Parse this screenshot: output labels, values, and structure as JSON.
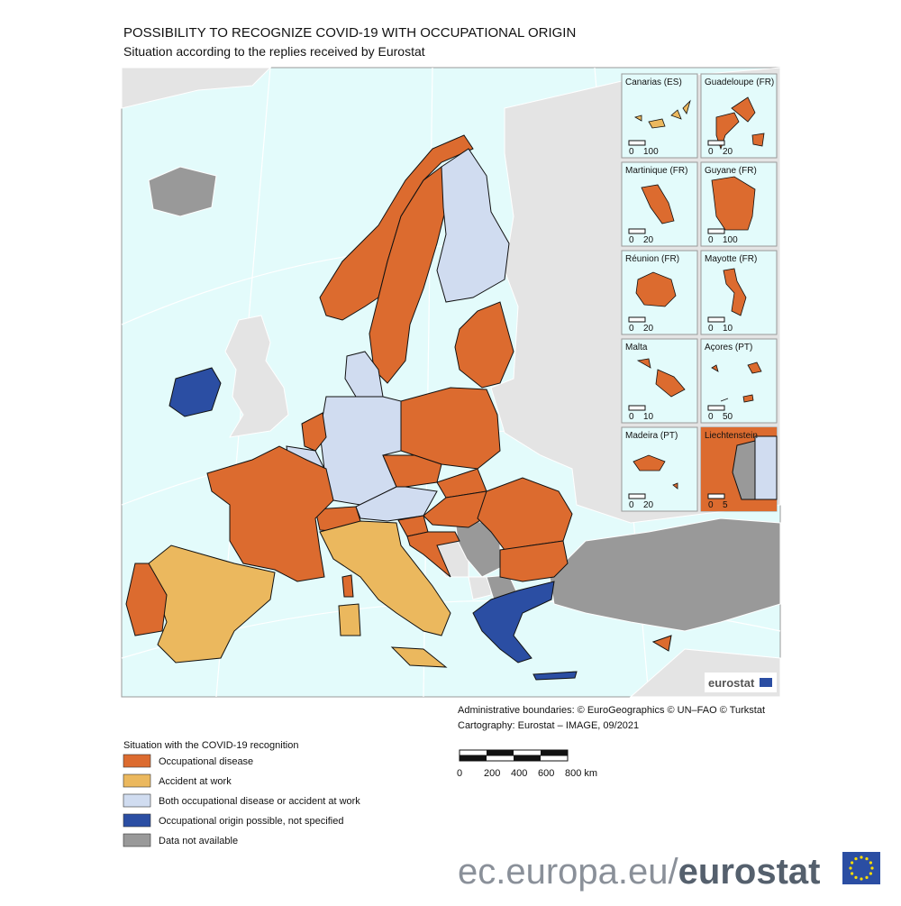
{
  "title": "POSSIBILITY TO RECOGNIZE COVID-19 WITH OCCUPATIONAL ORIGIN",
  "subtitle": "Situation according to the replies received by Eurostat",
  "insets": [
    {
      "label": "Canarias (ES)",
      "scale": [
        "0",
        "100"
      ]
    },
    {
      "label": "Guadeloupe (FR)",
      "scale": [
        "0",
        "20"
      ]
    },
    {
      "label": "Martinique (FR)",
      "scale": [
        "0",
        "20"
      ]
    },
    {
      "label": "Guyane (FR)",
      "scale": [
        "0",
        "100"
      ]
    },
    {
      "label": "Réunion (FR)",
      "scale": [
        "0",
        "20"
      ]
    },
    {
      "label": "Mayotte (FR)",
      "scale": [
        "0",
        "10"
      ]
    },
    {
      "label": "Malta",
      "scale": [
        "0",
        "10"
      ]
    },
    {
      "label": "Açores (PT)",
      "scale": [
        "0",
        "50"
      ]
    },
    {
      "label": "Madeira (PT)",
      "scale": [
        "0",
        "20"
      ]
    },
    {
      "label": "Liechtenstein",
      "scale": [
        "0",
        "5"
      ]
    }
  ],
  "logo": "eurostat",
  "credits": [
    "Administrative boundaries: © EuroGeographics © UN–FAO © Turkstat",
    "Cartography: Eurostat – IMAGE, 09/2021"
  ],
  "scale_bar": [
    "0",
    "200",
    "400",
    "600",
    "800 km"
  ],
  "legend": {
    "title": "Situation with the COVID-19 recognition",
    "items": [
      {
        "label": "Occupational disease",
        "color": "#dc6b2f"
      },
      {
        "label": "Accident at work",
        "color": "#ebb85e"
      },
      {
        "label": "Both occupational disease or accident at work",
        "color": "#d0dcf0"
      },
      {
        "label": "Occupational origin possible, not specified",
        "color": "#2b4ea3"
      },
      {
        "label": "Data not available",
        "color": "#999999"
      }
    ]
  },
  "footer": {
    "url": "ec.europa.eu/",
    "brand": "eurostat"
  }
}
